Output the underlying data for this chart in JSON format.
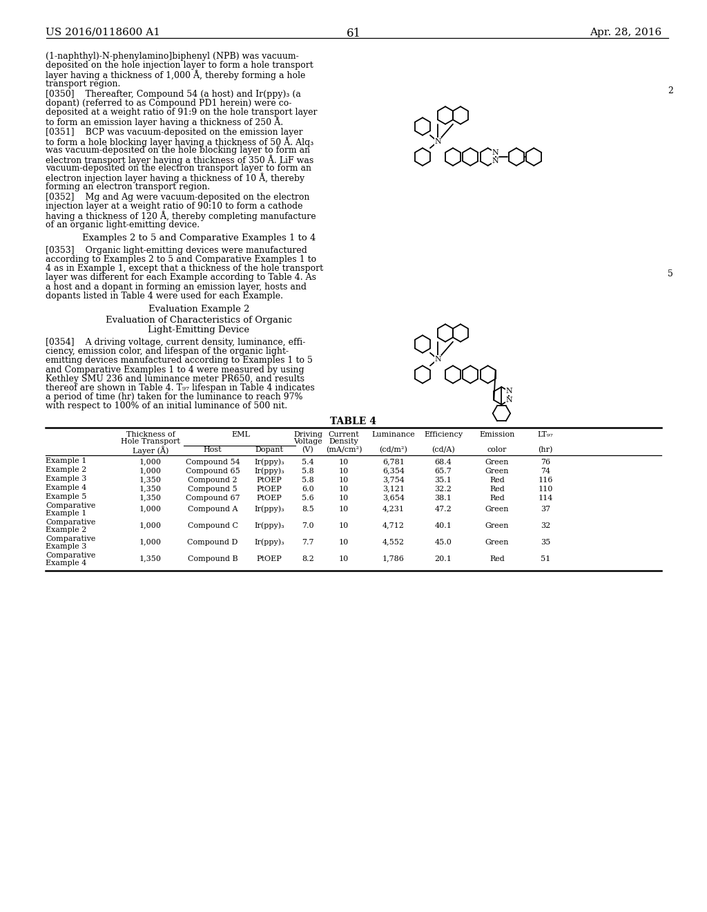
{
  "page_number": "61",
  "patent_number": "US 2016/0118600 A1",
  "patent_date": "Apr. 28, 2016",
  "background_color": "#ffffff",
  "header_left": "US 2016/0118600 A1",
  "header_right": "Apr. 28, 2016",
  "page_num_center": "61",
  "para1_lines": [
    "(1-naphthyl)-N-phenylamino]biphenyl (NPB) was vacuum-",
    "deposited on the hole injection layer to form a hole transport",
    "layer having a thickness of 1,000 Å, thereby forming a hole",
    "transport region."
  ],
  "para2_lines": [
    "[0350]    Thereafter, Compound 54 (a host) and Ir(ppy)₃ (a",
    "dopant) (referred to as Compound PD1 herein) were co-",
    "deposited at a weight ratio of 91:9 on the hole transport layer",
    "to form an emission layer having a thickness of 250 Å."
  ],
  "para3_lines": [
    "[0351]    BCP was vacuum-deposited on the emission layer",
    "to form a hole blocking layer having a thickness of 50 Å. Alq₃",
    "was vacuum-deposited on the hole blocking layer to form an",
    "electron transport layer having a thickness of 350 Å. LiF was",
    "vacuum-deposited on the electron transport layer to form an",
    "electron injection layer having a thickness of 10 Å, thereby",
    "forming an electron transport region."
  ],
  "para4_lines": [
    "[0352]    Mg and Ag were vacuum-deposited on the electron",
    "injection layer at a weight ratio of 90:10 to form a cathode",
    "having a thickness of 120 Å, thereby completing manufacture",
    "of an organic light-emitting device."
  ],
  "heading1": "Examples 2 to 5 and Comparative Examples 1 to 4",
  "para5_lines": [
    "[0353]    Organic light-emitting devices were manufactured",
    "according to Examples 2 to 5 and Comparative Examples 1 to",
    "4 as in Example 1, except that a thickness of the hole transport",
    "layer was different for each Example according to Table 4. As",
    "a host and a dopant in forming an emission layer, hosts and",
    "dopants listed in Table 4 were used for each Example."
  ],
  "heading2": "Evaluation Example 2",
  "heading3a": "Evaluation of Characteristics of Organic",
  "heading3b": "Light-Emitting Device",
  "para6_lines": [
    "[0354]    A driving voltage, current density, luminance, effi-",
    "ciency, emission color, and lifespan of the organic light-",
    "emitting devices manufactured according to Examples 1 to 5",
    "and Comparative Examples 1 to 4 were measured by using",
    "Kethley SMU 236 and luminance meter PR650, and results",
    "thereof are shown in Table 4. T₉₇ lifespan in Table 4 indicates",
    "a period of time (hr) taken for the luminance to reach 97%",
    "with respect to 100% of an initial luminance of 500 nit."
  ],
  "table_title": "TABLE 4",
  "table_rows": [
    [
      "Example 1",
      "1,000",
      "Compound 54",
      "Ir(ppy)₃",
      "5.4",
      "10",
      "6,781",
      "68.4",
      "Green",
      "76"
    ],
    [
      "Example 2",
      "1,000",
      "Compound 65",
      "Ir(ppy)₃",
      "5.8",
      "10",
      "6,354",
      "65.7",
      "Green",
      "74"
    ],
    [
      "Example 3",
      "1,350",
      "Compound 2",
      "PtOEP",
      "5.8",
      "10",
      "3,754",
      "35.1",
      "Red",
      "116"
    ],
    [
      "Example 4",
      "1,350",
      "Compound 5",
      "PtOEP",
      "6.0",
      "10",
      "3,121",
      "32.2",
      "Red",
      "110"
    ],
    [
      "Example 5",
      "1,350",
      "Compound 67",
      "PtOEP",
      "5.6",
      "10",
      "3,654",
      "38.1",
      "Red",
      "114"
    ],
    [
      "Comparative\nExample 1",
      "1,000",
      "Compound A",
      "Ir(ppy)₃",
      "8.5",
      "10",
      "4,231",
      "47.2",
      "Green",
      "37"
    ],
    [
      "Comparative\nExample 2",
      "1,000",
      "Compound C",
      "Ir(ppy)₃",
      "7.0",
      "10",
      "4,712",
      "40.1",
      "Green",
      "32"
    ],
    [
      "Comparative\nExample 3",
      "1,000",
      "Compound D",
      "Ir(ppy)₃",
      "7.7",
      "10",
      "4,552",
      "45.0",
      "Green",
      "35"
    ],
    [
      "Comparative\nExample 4",
      "1,350",
      "Compound B",
      "PtOEP",
      "8.2",
      "10",
      "1,786",
      "20.1",
      "Red",
      "51"
    ]
  ]
}
